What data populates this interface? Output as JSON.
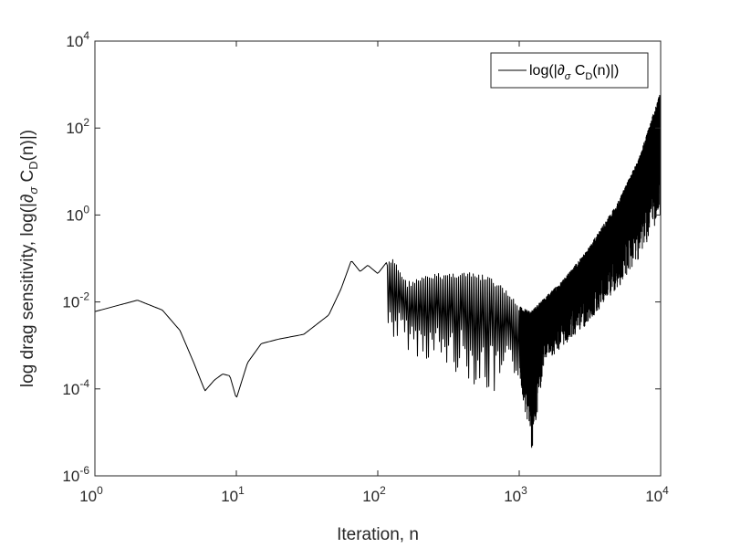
{
  "chart_data": {
    "type": "line",
    "xscale": "log",
    "yscale": "log",
    "xlim": [
      1,
      10000
    ],
    "ylim": [
      1e-06,
      10000
    ],
    "xticks": [
      1,
      10,
      100,
      1000,
      10000
    ],
    "yticks": [
      1e-06,
      0.0001,
      0.01,
      1,
      100,
      10000
    ],
    "xtick_labels": [
      {
        "base": "10",
        "exp": "0"
      },
      {
        "base": "10",
        "exp": "1"
      },
      {
        "base": "10",
        "exp": "2"
      },
      {
        "base": "10",
        "exp": "3"
      },
      {
        "base": "10",
        "exp": "4"
      }
    ],
    "ytick_labels": [
      {
        "base": "10",
        "exp": "-6"
      },
      {
        "base": "10",
        "exp": "-4"
      },
      {
        "base": "10",
        "exp": "-2"
      },
      {
        "base": "10",
        "exp": "0"
      },
      {
        "base": "10",
        "exp": "2"
      },
      {
        "base": "10",
        "exp": "4"
      }
    ],
    "xlabel": "Iteration, n",
    "ylabel": "log drag sensitivity, log(|∂",
    "ylabel_sub": "σ",
    "ylabel_end": " C",
    "ylabel_sub2": "D",
    "ylabel_tail": "(n)|)",
    "grid": false,
    "legend": {
      "placement": "top-right",
      "text_prefix": "log(|∂",
      "text_sub": "σ",
      "text_mid": " C",
      "text_sub2": "D",
      "text_tail": "(n)|)"
    },
    "series": [
      {
        "name": "log(|∂σ CD(n)|)",
        "color": "#000000",
        "envelope_upper": [
          [
            1,
            0.006
          ],
          [
            2,
            0.011
          ],
          [
            3,
            0.0065
          ],
          [
            4,
            0.0022
          ],
          [
            5,
            0.0004
          ],
          [
            6,
            9e-05
          ],
          [
            7,
            0.00016
          ],
          [
            8,
            0.00022
          ],
          [
            9,
            0.0002
          ],
          [
            10,
            6e-05
          ],
          [
            12,
            0.0004
          ],
          [
            15,
            0.0011
          ],
          [
            20,
            0.0014
          ],
          [
            30,
            0.0018
          ],
          [
            45,
            0.005
          ],
          [
            55,
            0.02
          ],
          [
            65,
            0.09
          ],
          [
            75,
            0.05
          ],
          [
            85,
            0.07
          ],
          [
            100,
            0.045
          ],
          [
            115,
            0.08
          ],
          [
            130,
            0.1
          ],
          [
            160,
            0.03
          ],
          [
            250,
            0.045
          ],
          [
            400,
            0.05
          ],
          [
            600,
            0.04
          ],
          [
            800,
            0.02
          ],
          [
            1000,
            0.008
          ],
          [
            1200,
            0.006
          ],
          [
            1500,
            0.012
          ],
          [
            2000,
            0.03
          ],
          [
            3000,
            0.15
          ],
          [
            5000,
            2
          ],
          [
            7000,
            20
          ],
          [
            10000,
            700
          ]
        ],
        "envelope_lower": [
          [
            120,
            0.0015
          ],
          [
            200,
            0.0005
          ],
          [
            400,
            0.0002
          ],
          [
            700,
            5e-05
          ],
          [
            1000,
            0.0002
          ],
          [
            1230,
            3.5e-06
          ],
          [
            1500,
            0.0004
          ],
          [
            2000,
            0.0009
          ],
          [
            3000,
            0.003
          ],
          [
            5000,
            0.02
          ],
          [
            7000,
            0.1
          ],
          [
            10000,
            1
          ]
        ]
      }
    ]
  }
}
